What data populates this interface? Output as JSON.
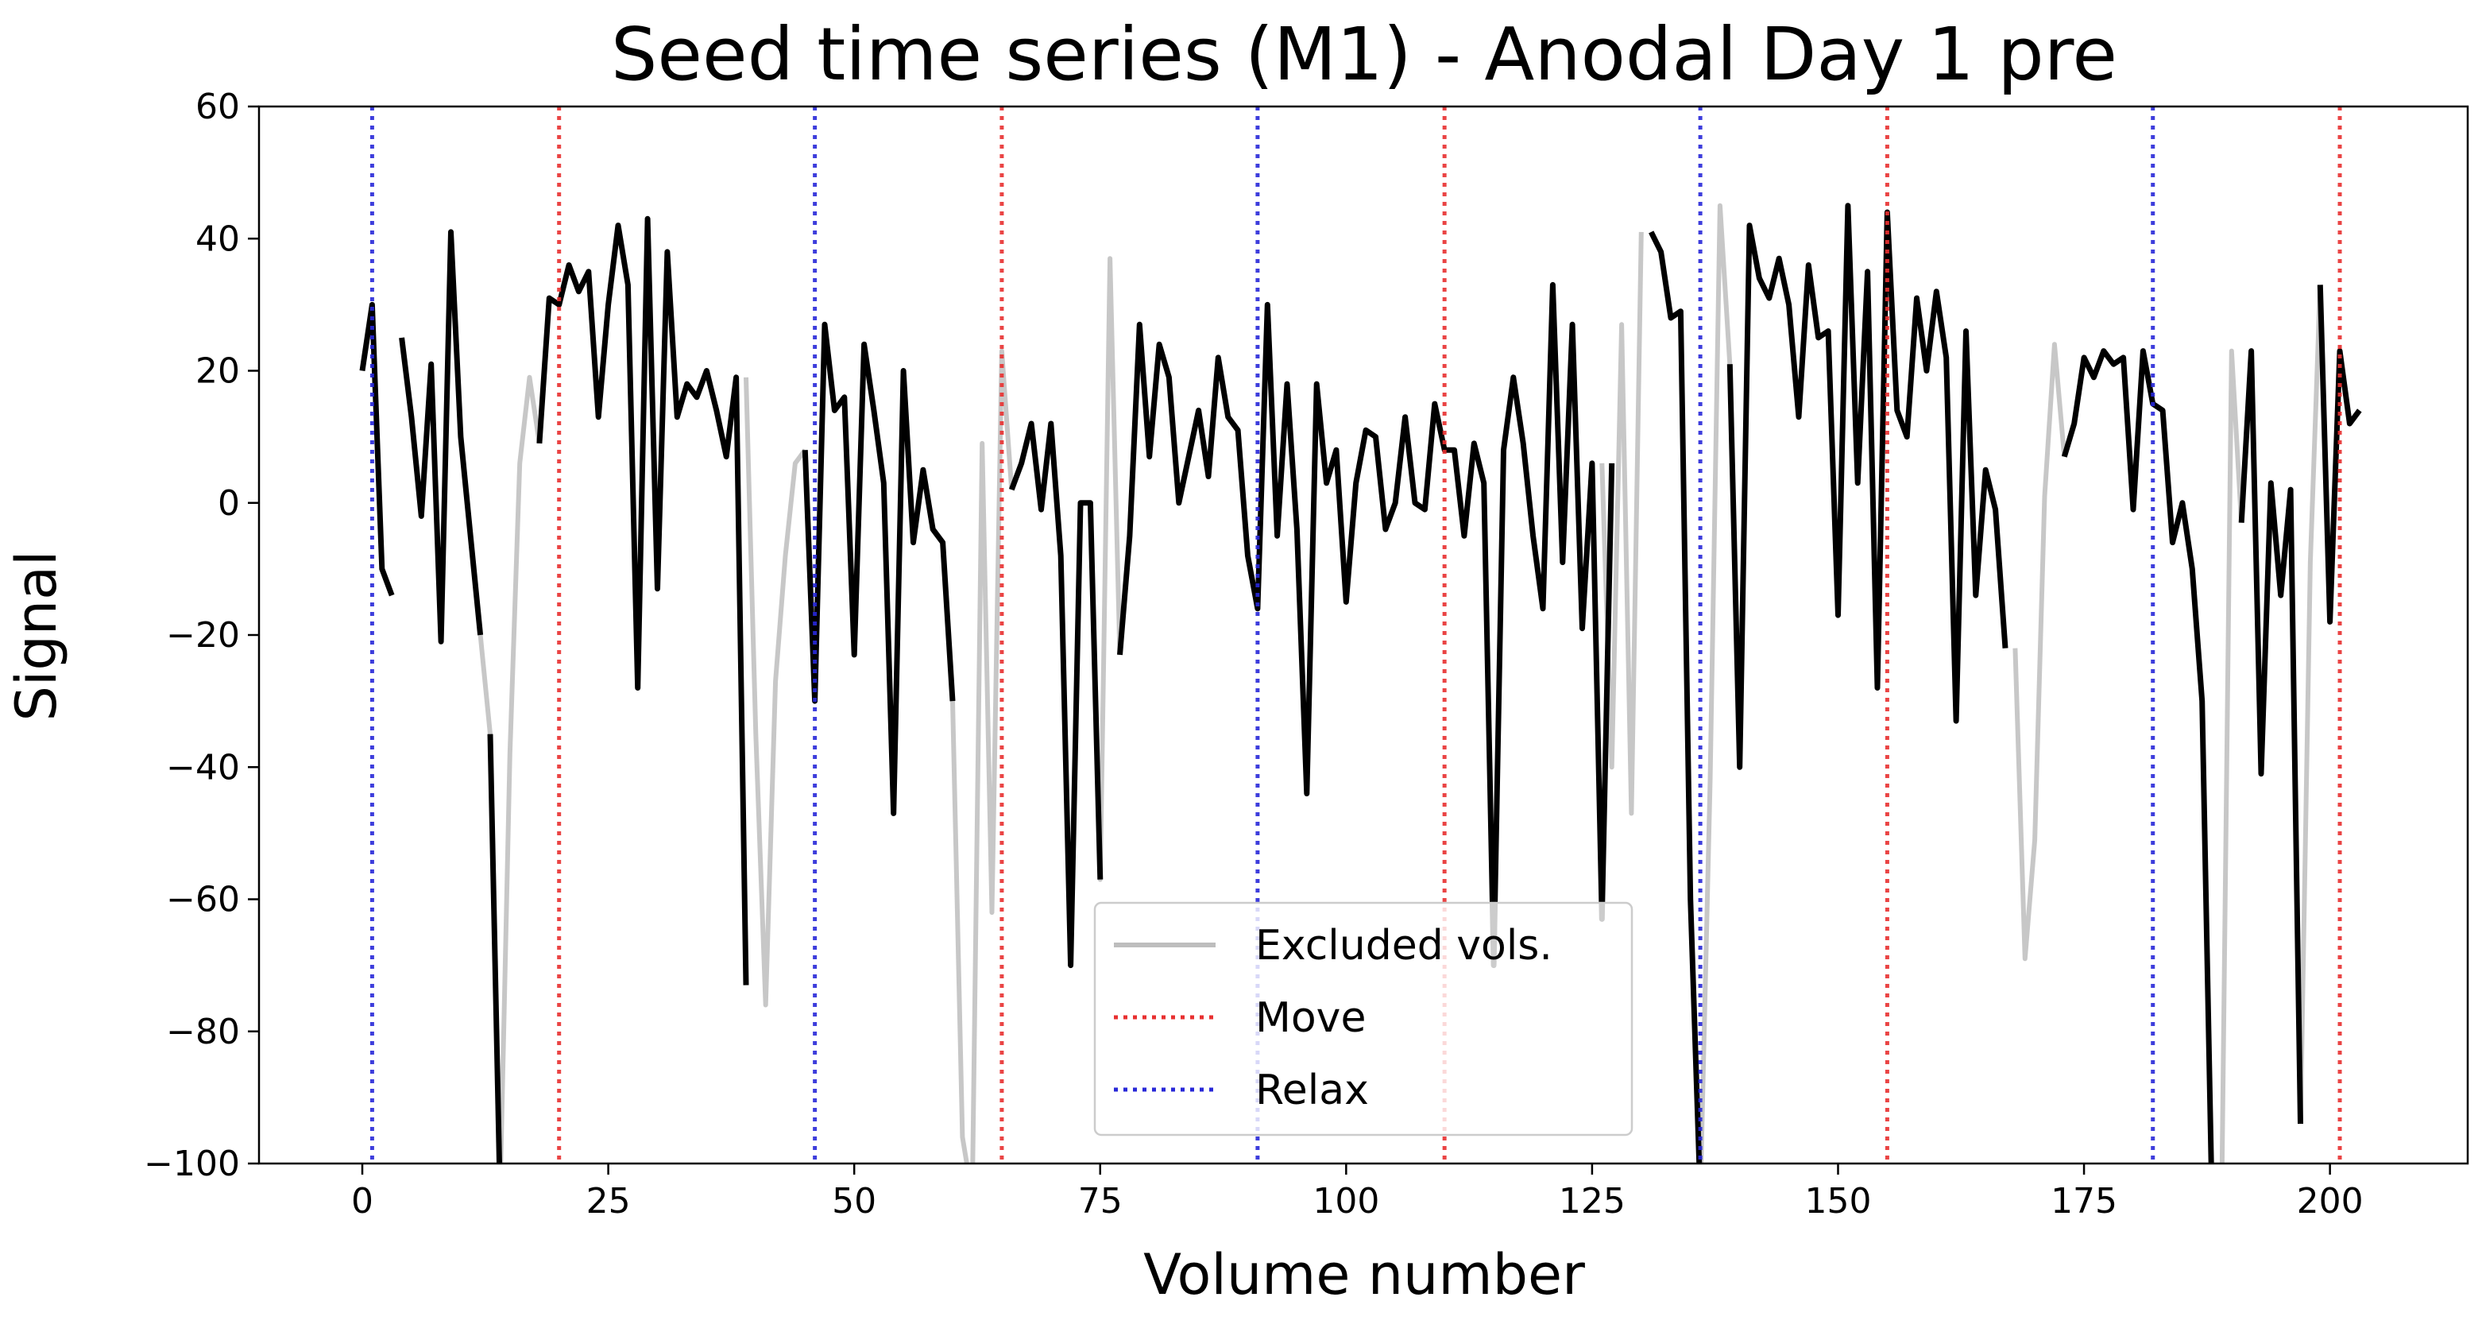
{
  "chart_data": {
    "type": "line",
    "title": "Seed time series (M1) - Anodal Day 1 pre",
    "xlabel": "Volume number",
    "ylabel": "Signal",
    "xlim": [
      -10.5,
      214
    ],
    "ylim": [
      -100,
      60
    ],
    "xticks": [
      0,
      25,
      50,
      75,
      100,
      125,
      150,
      175,
      200
    ],
    "yticks": [
      -100,
      -80,
      -60,
      -40,
      -20,
      0,
      20,
      40,
      60
    ],
    "grid": false,
    "legend": {
      "placement": "lower-center"
    },
    "colors": {
      "signal": "#000000",
      "excluded": "#bdbdbd",
      "move": "#e83030",
      "relax": "#2828d8"
    },
    "series": [
      {
        "name": "Excluded vols.",
        "style": "excluded",
        "segments": [
          [
            [
              12,
              -20
            ],
            [
              13,
              -35
            ],
            [
              14,
              -105
            ],
            [
              15,
              -38
            ],
            [
              16,
              6
            ],
            [
              17,
              19
            ],
            [
              18,
              9
            ]
          ],
          [
            [
              39,
              19
            ],
            [
              40,
              -35
            ],
            [
              41,
              -76
            ],
            [
              42,
              -27
            ],
            [
              43,
              -8
            ],
            [
              44,
              6
            ],
            [
              45,
              8
            ]
          ],
          [
            [
              60,
              -30
            ],
            [
              61,
              -96
            ],
            [
              62,
              -105
            ],
            [
              63,
              9
            ],
            [
              64,
              -62
            ],
            [
              65,
              23
            ],
            [
              66,
              2
            ]
          ],
          [
            [
              74,
              0
            ],
            [
              75,
              -57
            ],
            [
              76,
              37
            ],
            [
              77,
              -23
            ]
          ],
          [
            [
              126,
              6
            ],
            [
              127,
              -40
            ],
            [
              128,
              27
            ],
            [
              129,
              -47
            ],
            [
              130,
              41
            ]
          ],
          [
            [
              136,
              -105
            ],
            [
              137,
              -42
            ],
            [
              138,
              45
            ],
            [
              139,
              21
            ]
          ],
          [
            [
              168,
              -22
            ],
            [
              169,
              -69
            ],
            [
              170,
              -51
            ],
            [
              171,
              1
            ],
            [
              172,
              24
            ],
            [
              173,
              7
            ]
          ],
          [
            [
              189,
              -105
            ],
            [
              190,
              23
            ],
            [
              191,
              -3
            ]
          ],
          [
            [
              197,
              -94
            ],
            [
              198,
              -9
            ],
            [
              199,
              33
            ]
          ]
        ]
      },
      {
        "name": "Signal",
        "style": "signal",
        "segments": [
          [
            [
              0,
              20
            ],
            [
              1,
              30
            ],
            [
              2,
              -10
            ],
            [
              3,
              -14
            ]
          ],
          [
            [
              4,
              25
            ],
            [
              5,
              13
            ],
            [
              6,
              -2
            ],
            [
              7,
              21
            ],
            [
              8,
              -21
            ],
            [
              9,
              41
            ],
            [
              10,
              10
            ],
            [
              11,
              -5
            ],
            [
              12,
              -20
            ]
          ],
          [
            [
              13,
              -35
            ],
            [
              14,
              -105
            ]
          ],
          [
            [
              18,
              9
            ],
            [
              19,
              31
            ],
            [
              20,
              30
            ],
            [
              21,
              36
            ],
            [
              22,
              32
            ],
            [
              23,
              35
            ],
            [
              24,
              13
            ],
            [
              25,
              30
            ],
            [
              26,
              42
            ],
            [
              27,
              33
            ],
            [
              28,
              -28
            ],
            [
              29,
              43
            ],
            [
              30,
              -13
            ],
            [
              31,
              38
            ],
            [
              32,
              13
            ],
            [
              33,
              18
            ],
            [
              34,
              16
            ],
            [
              35,
              20
            ],
            [
              36,
              14
            ],
            [
              37,
              7
            ],
            [
              38,
              19
            ],
            [
              39,
              -73
            ]
          ],
          [
            [
              45,
              8
            ],
            [
              46,
              -30
            ],
            [
              47,
              27
            ],
            [
              48,
              14
            ],
            [
              49,
              16
            ],
            [
              50,
              -23
            ],
            [
              51,
              24
            ],
            [
              52,
              14
            ],
            [
              53,
              3
            ],
            [
              54,
              -47
            ],
            [
              55,
              20
            ],
            [
              56,
              -6
            ],
            [
              57,
              5
            ],
            [
              58,
              -4
            ],
            [
              59,
              -6
            ],
            [
              60,
              -30
            ]
          ],
          [
            [
              66,
              2
            ],
            [
              67,
              6
            ],
            [
              68,
              12
            ],
            [
              69,
              -1
            ],
            [
              70,
              12
            ],
            [
              71,
              -8
            ],
            [
              72,
              -70
            ],
            [
              73,
              0
            ],
            [
              74,
              0
            ],
            [
              75,
              -57
            ]
          ],
          [
            [
              77,
              -23
            ],
            [
              78,
              -5
            ],
            [
              79,
              27
            ],
            [
              80,
              7
            ],
            [
              81,
              24
            ],
            [
              82,
              19
            ],
            [
              83,
              0
            ],
            [
              84,
              7
            ],
            [
              85,
              14
            ],
            [
              86,
              4
            ],
            [
              87,
              22
            ],
            [
              88,
              13
            ],
            [
              89,
              11
            ],
            [
              90,
              -8
            ],
            [
              91,
              -16
            ],
            [
              92,
              30
            ],
            [
              93,
              -5
            ],
            [
              94,
              18
            ],
            [
              95,
              -4
            ],
            [
              96,
              -44
            ],
            [
              97,
              18
            ],
            [
              98,
              3
            ],
            [
              99,
              8
            ],
            [
              100,
              -15
            ],
            [
              101,
              3
            ],
            [
              102,
              11
            ],
            [
              103,
              10
            ],
            [
              104,
              -4
            ],
            [
              105,
              0
            ],
            [
              106,
              13
            ],
            [
              107,
              0
            ],
            [
              108,
              -1
            ],
            [
              109,
              15
            ],
            [
              110,
              8
            ],
            [
              111,
              8
            ],
            [
              112,
              -5
            ],
            [
              113,
              9
            ],
            [
              114,
              3
            ],
            [
              115,
              -70
            ],
            [
              116,
              8
            ],
            [
              117,
              19
            ],
            [
              118,
              9
            ],
            [
              119,
              -5
            ],
            [
              120,
              -16
            ],
            [
              121,
              33
            ],
            [
              122,
              -9
            ],
            [
              123,
              27
            ],
            [
              124,
              -19
            ],
            [
              125,
              6
            ],
            [
              126,
              -63
            ],
            [
              127,
              6
            ]
          ],
          [
            [
              131,
              41
            ],
            [
              132,
              38
            ],
            [
              133,
              28
            ],
            [
              134,
              29
            ],
            [
              135,
              -60
            ],
            [
              136,
              -105
            ]
          ],
          [
            [
              139,
              21
            ],
            [
              140,
              -40
            ],
            [
              141,
              42
            ],
            [
              142,
              34
            ],
            [
              143,
              31
            ],
            [
              144,
              37
            ],
            [
              145,
              30
            ],
            [
              146,
              13
            ],
            [
              147,
              36
            ],
            [
              148,
              25
            ],
            [
              149,
              26
            ],
            [
              150,
              -17
            ],
            [
              151,
              45
            ],
            [
              152,
              3
            ],
            [
              153,
              35
            ],
            [
              154,
              -28
            ],
            [
              155,
              44
            ],
            [
              156,
              14
            ],
            [
              157,
              10
            ],
            [
              158,
              31
            ],
            [
              159,
              20
            ],
            [
              160,
              32
            ],
            [
              161,
              22
            ],
            [
              162,
              -33
            ],
            [
              163,
              26
            ],
            [
              164,
              -14
            ],
            [
              165,
              5
            ],
            [
              166,
              -1
            ],
            [
              167,
              -22
            ]
          ],
          [
            [
              173,
              7
            ],
            [
              174,
              12
            ],
            [
              175,
              22
            ],
            [
              176,
              19
            ],
            [
              177,
              23
            ],
            [
              178,
              21
            ],
            [
              179,
              22
            ],
            [
              180,
              -1
            ],
            [
              181,
              23
            ],
            [
              182,
              15
            ],
            [
              183,
              14
            ],
            [
              184,
              -6
            ],
            [
              185,
              0
            ],
            [
              186,
              -10
            ],
            [
              187,
              -30
            ],
            [
              188,
              -105
            ]
          ],
          [
            [
              191,
              -3
            ],
            [
              192,
              23
            ],
            [
              193,
              -41
            ],
            [
              194,
              3
            ],
            [
              195,
              -14
            ],
            [
              196,
              2
            ],
            [
              197,
              -94
            ]
          ],
          [
            [
              199,
              33
            ],
            [
              200,
              -18
            ],
            [
              201,
              23
            ],
            [
              202,
              12
            ],
            [
              203,
              14
            ]
          ]
        ]
      }
    ],
    "event_lines": {
      "move": [
        20,
        65,
        110,
        155,
        201
      ],
      "relax": [
        1,
        46,
        91,
        136,
        182
      ]
    },
    "legend_entries": [
      {
        "label": "Excluded vols.",
        "style": "excluded"
      },
      {
        "label": "Move",
        "style": "move"
      },
      {
        "label": "Relax",
        "style": "relax"
      }
    ]
  }
}
